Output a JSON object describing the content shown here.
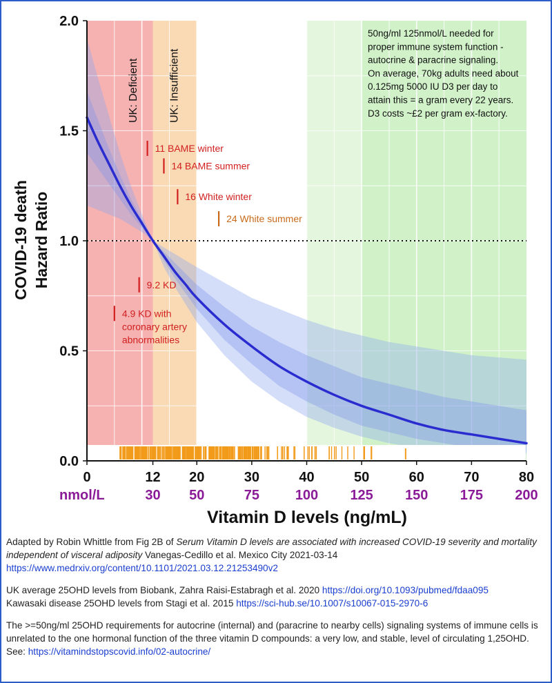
{
  "chart_data": {
    "type": "line",
    "xlabel": "Vitamin D levels (ng/mL)",
    "ylabel_line1": "COVID-19 death",
    "ylabel_line2": "Hazard Ratio",
    "xlim": [
      0,
      80
    ],
    "ylim": [
      0,
      2.0
    ],
    "x_ticks": [
      {
        "value": 0,
        "label": "0"
      },
      {
        "value": 12,
        "label": "12"
      },
      {
        "value": 20,
        "label": "20"
      },
      {
        "value": 30,
        "label": "30"
      },
      {
        "value": 40,
        "label": "40"
      },
      {
        "value": 50,
        "label": "50"
      },
      {
        "value": 60,
        "label": "60"
      },
      {
        "value": 70,
        "label": "70"
      },
      {
        "value": 80,
        "label": "80"
      }
    ],
    "y_ticks": [
      {
        "value": 0.0,
        "label": "0.0"
      },
      {
        "value": 0.5,
        "label": "0.5"
      },
      {
        "value": 1.0,
        "label": "1.0"
      },
      {
        "value": 1.5,
        "label": "1.5"
      },
      {
        "value": 2.0,
        "label": "2.0"
      }
    ],
    "nmol_labels": [
      {
        "x": 0,
        "label": "nmol/L"
      },
      {
        "x": 12,
        "label": "30"
      },
      {
        "x": 20,
        "label": "50"
      },
      {
        "x": 30,
        "label": "75"
      },
      {
        "x": 40,
        "label": "100"
      },
      {
        "x": 50,
        "label": "125"
      },
      {
        "x": 60,
        "label": "150"
      },
      {
        "x": 70,
        "label": "175"
      },
      {
        "x": 80,
        "label": "200"
      }
    ],
    "reference_line": 1.0,
    "regions": [
      {
        "name": "deficient",
        "from": 0,
        "to": 12,
        "label": "UK: Deficient",
        "color": "#f5a3a3"
      },
      {
        "name": "insufficient",
        "from": 12,
        "to": 20,
        "label": "UK: Insufficient",
        "color": "#f8d4a8"
      },
      {
        "name": "sufficient-light",
        "from": 40,
        "to": 50,
        "label": "",
        "color": "#dff5d8"
      },
      {
        "name": "sufficient",
        "from": 50,
        "to": 80,
        "label": "",
        "color": "#c9f0c0"
      }
    ],
    "curve": {
      "color": "#2a2ccf",
      "x": [
        0,
        2,
        4,
        6,
        8,
        10,
        12,
        14,
        16,
        18,
        20,
        25,
        30,
        35,
        40,
        45,
        50,
        55,
        60,
        65,
        70,
        75,
        80
      ],
      "y": [
        1.56,
        1.45,
        1.35,
        1.25,
        1.16,
        1.08,
        1.0,
        0.93,
        0.86,
        0.8,
        0.74,
        0.62,
        0.52,
        0.43,
        0.36,
        0.3,
        0.25,
        0.21,
        0.17,
        0.14,
        0.12,
        0.1,
        0.08
      ],
      "inner_band": {
        "upper": [
          1.68,
          1.55,
          1.42,
          1.3,
          1.19,
          1.1,
          1.0,
          0.95,
          0.9,
          0.85,
          0.8,
          0.7,
          0.61,
          0.54,
          0.48,
          0.43,
          0.38,
          0.35,
          0.32,
          0.29,
          0.27,
          0.25,
          0.23
        ],
        "lower": [
          1.4,
          1.33,
          1.26,
          1.19,
          1.12,
          1.06,
          1.0,
          0.91,
          0.83,
          0.76,
          0.69,
          0.55,
          0.44,
          0.34,
          0.27,
          0.21,
          0.16,
          0.13,
          0.1,
          0.08,
          0.06,
          0.05,
          0.04
        ]
      },
      "outer_band": {
        "upper": [
          1.92,
          1.74,
          1.57,
          1.4,
          1.25,
          1.12,
          1.0,
          0.97,
          0.94,
          0.91,
          0.88,
          0.81,
          0.74,
          0.69,
          0.64,
          0.6,
          0.57,
          0.54,
          0.52,
          0.5,
          0.48,
          0.47,
          0.46
        ],
        "lower": [
          1.16,
          1.14,
          1.12,
          1.1,
          1.07,
          1.04,
          1.0,
          0.88,
          0.79,
          0.71,
          0.63,
          0.48,
          0.36,
          0.27,
          0.2,
          0.15,
          0.11,
          0.08,
          0.06,
          0.05,
          0.04,
          0.03,
          0.03
        ]
      }
    },
    "annotations": [
      {
        "x": 11,
        "y": 1.42,
        "text": "11 BAME winter",
        "color": "#d11f1f"
      },
      {
        "x": 14,
        "y": 1.34,
        "text": "14 BAME summer",
        "color": "#d11f1f"
      },
      {
        "x": 16.5,
        "y": 1.2,
        "text": "16 White winter",
        "color": "#d11f1f"
      },
      {
        "x": 24,
        "y": 1.1,
        "text": "24 White summer",
        "color": "#c86a1a"
      },
      {
        "x": 9.5,
        "y": 0.8,
        "text": "9.2 KD",
        "color": "#d11f1f"
      },
      {
        "x": 5,
        "y": 0.67,
        "lines": [
          "4.9 KD with",
          "coronary artery",
          "abnormalities"
        ],
        "color": "#d11f1f"
      }
    ],
    "info_box": [
      "50ng/ml 125nmol/L needed for",
      "proper immune system function -",
      "autocrine & paracrine signaling.",
      "On average, 70kg adults need about",
      "0.125mg 5000 IU D3 per day to",
      "attain this = a gram every 22 years.",
      "D3 costs ~£2 per gram ex-factory."
    ],
    "rug_color": "#f29b1a"
  },
  "caption": {
    "p1_prefix": "Adapted by Robin Whittle from Fig 2B of ",
    "p1_italic": "Serum Vitamin D levels are associated with increased COVID-19 severity and mortality independent of visceral adiposity",
    "p1_suffix": " Vanegas-Cedillo et al. Mexico City 2021-03-14",
    "p1_link": "https://www.medrxiv.org/content/10.1101/2021.03.12.21253490v2",
    "p2_text": "UK average 25OHD levels from Biobank, Zahra Raisi-Estabragh et al. 2020 ",
    "p2_link": "https://doi.org/10.1093/pubmed/fdaa095",
    "p2b_text": "Kawasaki disease 25OHD levels from Stagi et al. 2015 ",
    "p2b_link": "https://sci-hub.se/10.1007/s10067-015-2970-6",
    "p3_text": "The >=50ng/ml 25OHD requirements for autocrine (internal) and (paracrine to nearby cells) signaling systems of immune cells is unrelated to the one hormonal function of the three vitamin D compounds: a very low, and stable, level of circulating 1,25OHD.  See:  ",
    "p3_link": "https://vitamindstopscovid.info/02-autocrine/"
  }
}
